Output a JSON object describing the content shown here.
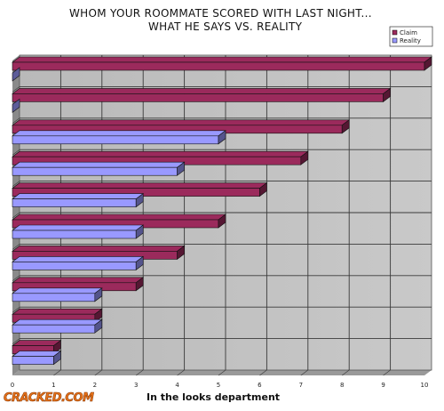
{
  "chart_data": {
    "type": "bar",
    "orientation": "horizontal",
    "title": [
      "WHOM YOUR ROOMMATE SCORED WITH LAST NIGHT...",
      "WHAT HE SAYS VS. REALITY"
    ],
    "xlabel": "In the looks department",
    "ylabel": "",
    "xlim": [
      0,
      10
    ],
    "x_ticks": [
      "0",
      "1",
      "2",
      "3",
      "4",
      "5",
      "6",
      "7",
      "8",
      "9",
      "10"
    ],
    "grid": true,
    "legend_position": "top-right",
    "series": [
      {
        "name": "Claim",
        "color": "#9b2a5c",
        "values": [
          10,
          9,
          8,
          7,
          6,
          5,
          4,
          3,
          2,
          1
        ]
      },
      {
        "name": "Reality",
        "color": "#9999ff",
        "values": [
          0,
          0,
          5,
          4,
          3,
          3,
          3,
          2,
          2,
          1
        ]
      }
    ]
  },
  "watermark": "CRACKED.COM"
}
